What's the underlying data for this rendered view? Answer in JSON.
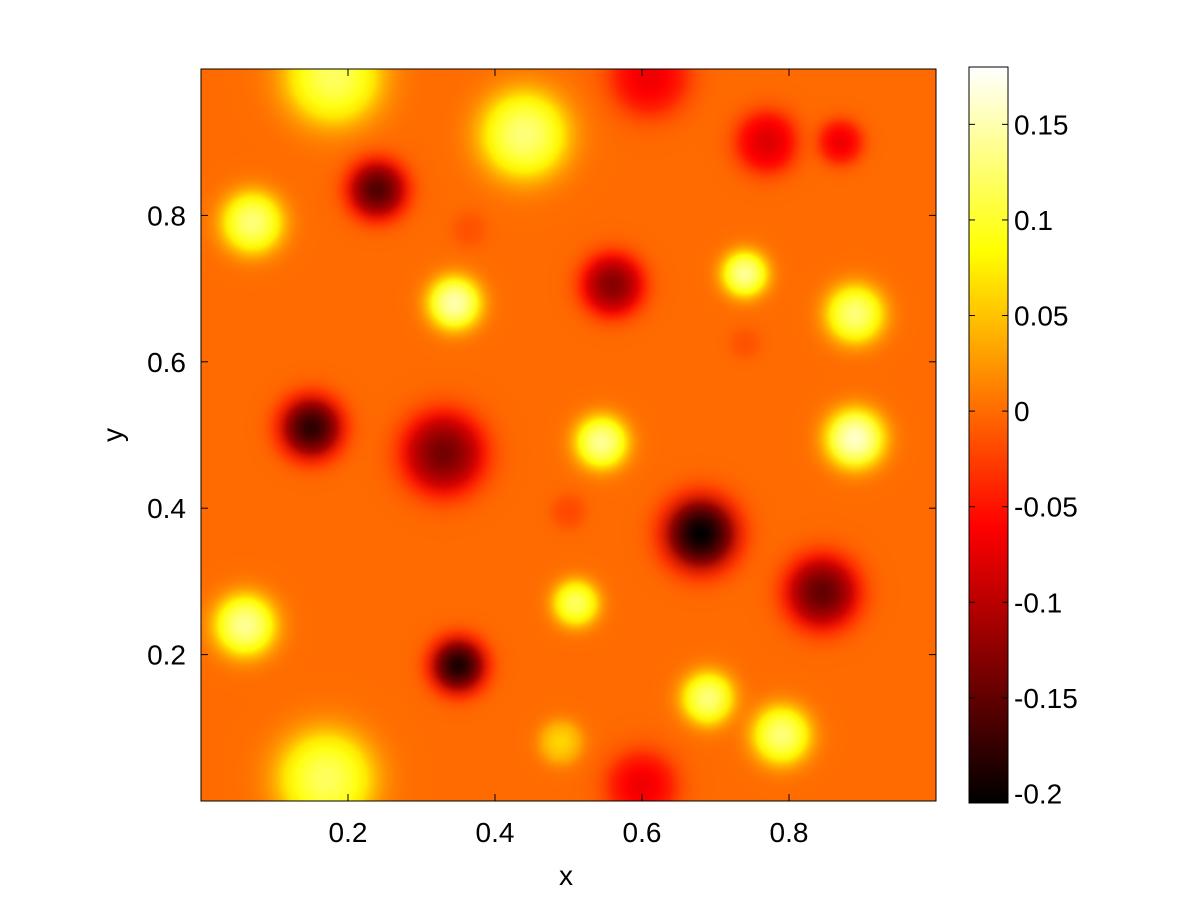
{
  "chart_data": {
    "type": "heatmap",
    "xlabel": "x",
    "ylabel": "y",
    "xlim": [
      0,
      1
    ],
    "ylim": [
      0,
      1
    ],
    "xticks": [
      0.2,
      0.4,
      0.6,
      0.8
    ],
    "xtick_labels": [
      "0.2",
      "0.4",
      "0.6",
      "0.8"
    ],
    "yticks": [
      0.2,
      0.4,
      0.6,
      0.8
    ],
    "ytick_labels": [
      "0.2",
      "0.4",
      "0.6",
      "0.8"
    ],
    "colormap": "hot",
    "colormap_stops": [
      "#000000",
      "#ff0000",
      "#ffff00",
      "#ffffff"
    ],
    "clim": [
      -0.205,
      0.18
    ],
    "background_level": 0.0,
    "colorbar": {
      "location": "right",
      "ticks": [
        0.15,
        0.1,
        0.05,
        0,
        -0.05,
        -0.1,
        -0.15,
        -0.2
      ],
      "tick_labels": [
        "0.15",
        "0.1",
        "0.05",
        "0",
        "-0.05",
        "-0.1",
        "-0.15",
        "-0.2"
      ]
    },
    "features": [
      {
        "x": 0.18,
        "y": 0.99,
        "value": 0.12,
        "width": 0.055
      },
      {
        "x": 0.61,
        "y": 0.99,
        "value": -0.07,
        "width": 0.045
      },
      {
        "x": 0.44,
        "y": 0.91,
        "value": 0.13,
        "width": 0.05
      },
      {
        "x": 0.77,
        "y": 0.9,
        "value": -0.08,
        "width": 0.035
      },
      {
        "x": 0.87,
        "y": 0.9,
        "value": -0.07,
        "width": 0.025
      },
      {
        "x": 0.24,
        "y": 0.835,
        "value": -0.16,
        "width": 0.032
      },
      {
        "x": 0.07,
        "y": 0.79,
        "value": 0.13,
        "width": 0.035
      },
      {
        "x": 0.365,
        "y": 0.78,
        "value": -0.015,
        "width": 0.02
      },
      {
        "x": 0.56,
        "y": 0.705,
        "value": -0.13,
        "width": 0.034
      },
      {
        "x": 0.74,
        "y": 0.72,
        "value": 0.14,
        "width": 0.026
      },
      {
        "x": 0.345,
        "y": 0.68,
        "value": 0.15,
        "width": 0.03
      },
      {
        "x": 0.89,
        "y": 0.665,
        "value": 0.13,
        "width": 0.033
      },
      {
        "x": 0.74,
        "y": 0.625,
        "value": -0.015,
        "width": 0.018
      },
      {
        "x": 0.15,
        "y": 0.51,
        "value": -0.18,
        "width": 0.034
      },
      {
        "x": 0.33,
        "y": 0.475,
        "value": -0.14,
        "width": 0.045
      },
      {
        "x": 0.545,
        "y": 0.49,
        "value": 0.14,
        "width": 0.03
      },
      {
        "x": 0.89,
        "y": 0.495,
        "value": 0.16,
        "width": 0.033
      },
      {
        "x": 0.5,
        "y": 0.395,
        "value": -0.02,
        "width": 0.02
      },
      {
        "x": 0.68,
        "y": 0.365,
        "value": -0.205,
        "width": 0.04
      },
      {
        "x": 0.845,
        "y": 0.285,
        "value": -0.15,
        "width": 0.04
      },
      {
        "x": 0.06,
        "y": 0.24,
        "value": 0.14,
        "width": 0.035
      },
      {
        "x": 0.51,
        "y": 0.27,
        "value": 0.12,
        "width": 0.026
      },
      {
        "x": 0.35,
        "y": 0.185,
        "value": -0.19,
        "width": 0.03
      },
      {
        "x": 0.69,
        "y": 0.14,
        "value": 0.13,
        "width": 0.03
      },
      {
        "x": 0.79,
        "y": 0.09,
        "value": 0.13,
        "width": 0.033
      },
      {
        "x": 0.49,
        "y": 0.08,
        "value": 0.06,
        "width": 0.025
      },
      {
        "x": 0.6,
        "y": 0.02,
        "value": -0.07,
        "width": 0.04
      },
      {
        "x": 0.17,
        "y": 0.03,
        "value": 0.12,
        "width": 0.055
      }
    ]
  }
}
